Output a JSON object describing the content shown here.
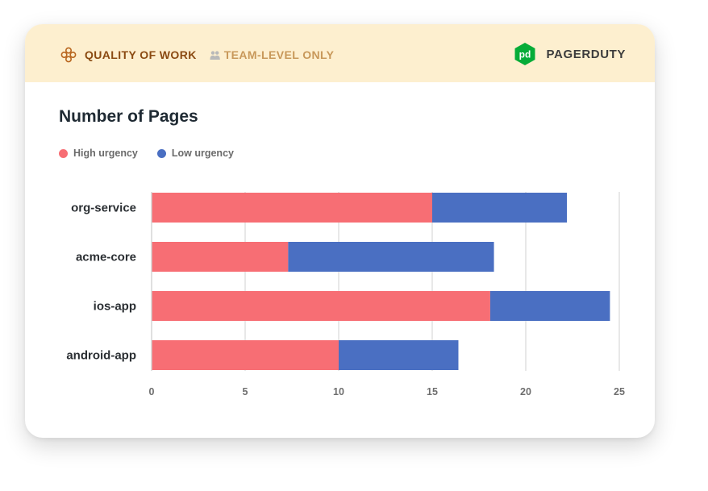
{
  "header": {
    "quality_label": "QUALITY OF WORK",
    "team_label": "TEAM-LEVEL ONLY",
    "brand_name": "PAGERDUTY",
    "brand_logo_text": "pd",
    "icons": {
      "quality": "flower-icon",
      "team": "people-icon",
      "brand": "pagerduty-logo"
    }
  },
  "colors": {
    "header_bg": "#fdefcf",
    "quality_text": "#8a4a12",
    "team_text": "#c8985a",
    "brand_green": "#06ac38",
    "high_urgency": "#f76e74",
    "low_urgency": "#4a6fc2"
  },
  "chart_data": {
    "type": "bar",
    "orientation": "horizontal",
    "stacked": true,
    "title": "Number of Pages",
    "categories": [
      "org-service",
      "acme-core",
      "ios-app",
      "android-app"
    ],
    "series": [
      {
        "name": "High urgency",
        "color": "#f76e74",
        "values": [
          15,
          7.3,
          18.1,
          10
        ]
      },
      {
        "name": "Low urgency",
        "color": "#4a6fc2",
        "values": [
          7.2,
          11.0,
          6.4,
          6.4
        ]
      }
    ],
    "xlim": [
      0,
      25
    ],
    "xticks": [
      0,
      5,
      10,
      15,
      20,
      25
    ],
    "grid": true,
    "legend_position": "top-left"
  }
}
